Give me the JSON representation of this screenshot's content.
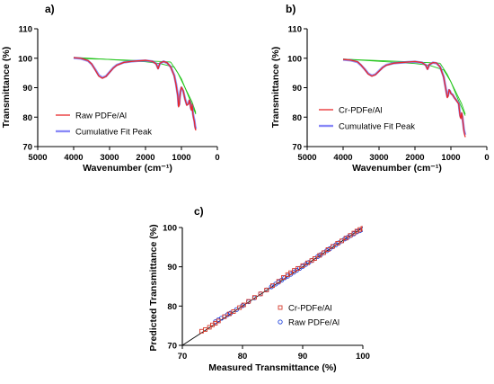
{
  "colors": {
    "raw": "#e8282b",
    "cumfit": "#6b6bf5",
    "cr": "#e8282b",
    "baseline": "#22c41a",
    "axis": "#000000",
    "scatter_cr": "#d63a2c",
    "scatter_raw": "#2244dd",
    "diag": "#000000"
  },
  "chart_data": [
    {
      "panel": "a)",
      "type": "line",
      "xlabel": "Wavenumber (cm⁻¹)",
      "ylabel": "Transmittance (%)",
      "xlim": [
        5000,
        0
      ],
      "ylim": [
        70,
        110
      ],
      "xticks": [
        5000,
        4000,
        3000,
        2000,
        1000,
        0
      ],
      "yticks": [
        70,
        80,
        90,
        100,
        110
      ],
      "legend": [
        "Raw PDFe/Al",
        "Cumulative Fit Peak"
      ],
      "series": [
        {
          "name": "Raw PDFe/Al",
          "x": [
            4000,
            3800,
            3600,
            3500,
            3400,
            3300,
            3200,
            3100,
            3000,
            2900,
            2800,
            2600,
            2400,
            2200,
            2000,
            1800,
            1700,
            1650,
            1600,
            1500,
            1400,
            1300,
            1200,
            1150,
            1100,
            1080,
            1060,
            1050,
            1030,
            1000,
            950,
            900,
            850,
            800,
            780,
            760,
            740,
            720,
            700,
            680,
            660,
            640,
            620,
            600
          ],
          "y": [
            100.2,
            100.0,
            99.2,
            98.1,
            96.0,
            93.9,
            93.2,
            93.8,
            95.2,
            96.6,
            97.6,
            98.6,
            98.9,
            99.1,
            99.3,
            98.9,
            98.0,
            96.4,
            98.3,
            98.9,
            98.5,
            97.0,
            94.0,
            91.0,
            87.0,
            83.5,
            84.0,
            86.0,
            88.5,
            90.2,
            89.0,
            86.0,
            84.0,
            84.5,
            85.8,
            85.0,
            83.0,
            82.3,
            84.3,
            81.0,
            79.5,
            78.5,
            76.5,
            75.5
          ]
        },
        {
          "name": "Cumulative Fit Peak",
          "x": [
            4000,
            3800,
            3600,
            3500,
            3400,
            3300,
            3200,
            3100,
            3000,
            2900,
            2800,
            2600,
            2400,
            2200,
            2000,
            1800,
            1700,
            1650,
            1600,
            1500,
            1400,
            1300,
            1200,
            1150,
            1100,
            1080,
            1060,
            1050,
            1030,
            1000,
            950,
            900,
            850,
            800,
            780,
            760,
            740,
            720,
            700,
            680,
            660,
            640,
            620,
            600
          ],
          "y": [
            100.1,
            99.9,
            99.1,
            98.0,
            96.2,
            94.2,
            93.4,
            93.9,
            95.3,
            96.7,
            97.7,
            98.6,
            98.9,
            99.1,
            99.2,
            98.9,
            98.1,
            96.6,
            98.2,
            98.9,
            98.4,
            97.1,
            94.2,
            91.3,
            87.4,
            84.0,
            84.4,
            86.2,
            88.6,
            90.0,
            88.8,
            86.2,
            84.3,
            84.7,
            85.6,
            85.1,
            83.4,
            82.6,
            84.0,
            81.3,
            79.9,
            78.9,
            77.0,
            76.0
          ]
        },
        {
          "name": "",
          "role": "baseline",
          "x": [
            4000,
            3800,
            3600,
            3400,
            3200,
            3000,
            2800,
            2600,
            2400,
            2200,
            2000,
            1800,
            1600,
            1400,
            1300
          ],
          "y": [
            100.3,
            100.0,
            99.8,
            99.7,
            99.7,
            99.6,
            99.5,
            99.4,
            99.3,
            99.2,
            99.1,
            99.0,
            98.9,
            98.8,
            98.7
          ]
        },
        {
          "name": "",
          "role": "baseline",
          "x": [
            4000,
            3600,
            3200,
            2800,
            2400,
            2000,
            1600,
            1200,
            1000,
            800,
            600
          ],
          "y": [
            100.3,
            100.0,
            99.7,
            99.4,
            99.1,
            98.8,
            98.2,
            97.0,
            93.0,
            87.0,
            81.0
          ]
        },
        {
          "name": "",
          "role": "baseline",
          "x": [
            1300,
            1100,
            900,
            700,
            600
          ],
          "y": [
            98.7,
            95.0,
            90.0,
            85.0,
            81.5
          ]
        }
      ]
    },
    {
      "panel": "b)",
      "type": "line",
      "xlabel": "Wavenumber (cm⁻¹)",
      "ylabel": "Transmittance (%)",
      "xlim": [
        5000,
        0
      ],
      "ylim": [
        70,
        110
      ],
      "xticks": [
        5000,
        4000,
        3000,
        2000,
        1000,
        0
      ],
      "yticks": [
        70,
        80,
        90,
        100,
        110
      ],
      "legend": [
        "Cr-PDFe/Al",
        "Cumulative Fit Peak"
      ],
      "series": [
        {
          "name": "Cr-PDFe/Al",
          "x": [
            4000,
            3800,
            3600,
            3500,
            3400,
            3300,
            3200,
            3100,
            3000,
            2900,
            2800,
            2600,
            2400,
            2200,
            2000,
            1800,
            1700,
            1650,
            1600,
            1500,
            1400,
            1300,
            1200,
            1150,
            1100,
            1080,
            1060,
            1050,
            1030,
            1000,
            950,
            900,
            850,
            800,
            780,
            760,
            740,
            720,
            700,
            680,
            660,
            640,
            620,
            600
          ],
          "y": [
            99.6,
            99.4,
            98.8,
            97.7,
            96.2,
            94.6,
            93.9,
            94.4,
            95.6,
            96.8,
            97.6,
            98.3,
            98.5,
            98.7,
            98.9,
            98.5,
            97.6,
            96.2,
            97.9,
            98.5,
            98.4,
            97.0,
            93.5,
            90.0,
            86.6,
            87.0,
            88.5,
            89.3,
            89.0,
            88.0,
            87.5,
            86.5,
            85.7,
            84.8,
            84.5,
            82.0,
            80.0,
            79.5,
            81.5,
            80.2,
            77.8,
            75.5,
            74.2,
            73.2
          ]
        },
        {
          "name": "Cumulative Fit Peak",
          "x": [
            4000,
            3800,
            3600,
            3500,
            3400,
            3300,
            3200,
            3100,
            3000,
            2900,
            2800,
            2600,
            2400,
            2200,
            2000,
            1800,
            1700,
            1650,
            1600,
            1500,
            1400,
            1300,
            1200,
            1150,
            1100,
            1080,
            1060,
            1050,
            1030,
            1000,
            950,
            900,
            850,
            800,
            780,
            760,
            740,
            720,
            700,
            680,
            660,
            640,
            620,
            600
          ],
          "y": [
            99.5,
            99.3,
            98.7,
            97.6,
            96.3,
            94.8,
            94.1,
            94.5,
            95.7,
            96.9,
            97.7,
            98.3,
            98.5,
            98.7,
            98.8,
            98.5,
            97.7,
            96.4,
            97.8,
            98.5,
            98.3,
            97.1,
            93.7,
            90.3,
            87.0,
            87.3,
            88.6,
            89.2,
            88.9,
            88.1,
            87.6,
            86.6,
            85.8,
            85.0,
            84.6,
            82.3,
            80.5,
            80.0,
            81.2,
            80.0,
            78.0,
            76.0,
            74.8,
            74.0
          ]
        },
        {
          "name": "",
          "role": "baseline",
          "x": [
            4000,
            3600,
            3200,
            2800,
            2400,
            2000,
            1600,
            1300
          ],
          "y": [
            99.7,
            99.5,
            99.3,
            99.1,
            98.9,
            98.7,
            98.5,
            98.3
          ]
        },
        {
          "name": "",
          "role": "baseline",
          "x": [
            4000,
            3600,
            3200,
            2800,
            2400,
            2000,
            1600,
            1200,
            1000,
            800,
            600
          ],
          "y": [
            99.7,
            99.4,
            99.1,
            98.8,
            98.5,
            98.2,
            97.6,
            96.0,
            92.0,
            86.0,
            80.5
          ]
        },
        {
          "name": "",
          "role": "baseline",
          "x": [
            1300,
            1100,
            900,
            700,
            600
          ],
          "y": [
            98.3,
            94.5,
            89.5,
            84.5,
            81.0
          ]
        }
      ]
    },
    {
      "panel": "c)",
      "type": "scatter",
      "xlabel": "Measured Transmittance (%)",
      "ylabel": "Predicted Transmittance (%)",
      "xlim": [
        70,
        100
      ],
      "ylim": [
        70,
        100
      ],
      "xticks": [
        70,
        80,
        90,
        100
      ],
      "yticks": [
        70,
        80,
        90,
        100
      ],
      "legend": [
        "Cr-PDFe/Al",
        "Raw PDFe/Al"
      ],
      "series": [
        {
          "name": "Cr-PDFe/Al",
          "marker": "square",
          "x": [
            73.2,
            73.8,
            74.5,
            75.0,
            75.5,
            76.0,
            77.0,
            77.8,
            78.5,
            79.5,
            80.2,
            81.0,
            82.0,
            83.0,
            84.0,
            85.0,
            86.0,
            86.8,
            87.5,
            88.0,
            88.6,
            89.2,
            90.0,
            90.8,
            91.5,
            92.0,
            92.8,
            93.5,
            94.2,
            95.0,
            95.8,
            96.5,
            97.2,
            97.9,
            98.5,
            99.0,
            99.5,
            100.0
          ],
          "y": [
            73.6,
            74.0,
            74.6,
            75.2,
            75.6,
            76.2,
            77.3,
            78.0,
            78.6,
            79.6,
            80.3,
            81.2,
            82.2,
            83.1,
            84.1,
            85.2,
            86.3,
            87.3,
            88.0,
            88.5,
            89.1,
            89.6,
            90.3,
            91.0,
            91.6,
            92.1,
            92.9,
            93.6,
            94.4,
            95.2,
            96.0,
            96.6,
            97.3,
            98.0,
            98.6,
            99.1,
            99.5,
            99.8
          ]
        },
        {
          "name": "Raw PDFe/Al",
          "marker": "circle",
          "x": [
            75.5,
            76.0,
            76.5,
            77.0,
            77.5,
            78.0,
            79.0,
            80.0,
            81.0,
            82.0,
            83.0,
            84.0,
            84.8,
            85.5,
            86.0,
            86.5,
            87.0,
            87.5,
            88.0,
            88.5,
            89.0,
            89.5,
            90.0,
            90.5,
            91.0,
            91.5,
            92.0,
            92.5,
            93.0,
            93.5,
            94.0,
            94.5,
            95.0,
            95.5,
            96.0,
            96.5,
            97.0,
            97.5,
            98.0,
            98.5,
            99.0,
            99.5,
            100.0
          ],
          "y": [
            76.0,
            76.5,
            76.9,
            77.3,
            77.8,
            78.2,
            79.1,
            80.1,
            81.1,
            82.1,
            83.1,
            84.1,
            84.9,
            85.6,
            86.1,
            86.6,
            87.2,
            87.6,
            88.1,
            88.6,
            89.1,
            89.6,
            90.1,
            90.6,
            91.1,
            91.6,
            92.1,
            92.6,
            93.1,
            93.6,
            94.1,
            94.6,
            95.1,
            95.6,
            96.1,
            96.6,
            97.1,
            97.5,
            98.0,
            98.4,
            98.9,
            99.2,
            99.5
          ]
        },
        {
          "name": "",
          "role": "identity",
          "x": [
            70,
            100
          ],
          "y": [
            70,
            100
          ]
        }
      ]
    }
  ]
}
